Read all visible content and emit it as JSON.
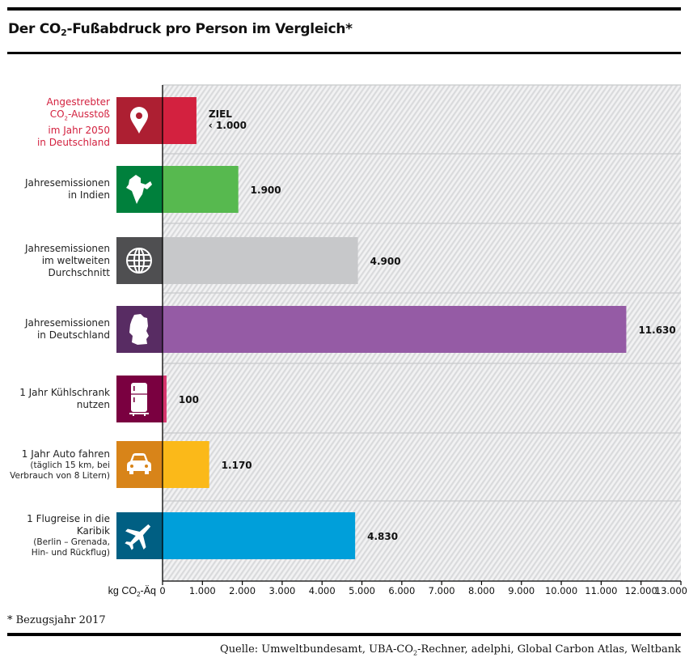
{
  "title": {
    "main_before": "Der CO",
    "sub": "2",
    "main_after": "-Fußabdruck pro Person im Vergleich*"
  },
  "footnote": "* Bezugsjahr 2017",
  "source": {
    "before": "Quelle: Umweltbundesamt, UBA-CO",
    "sub": "2",
    "after": "-Rechner, adelphi, Global Carbon Atlas, Weltbank"
  },
  "chart_data": {
    "type": "bar",
    "orientation": "horizontal",
    "title": "Der CO2-Fußabdruck pro Person im Vergleich*",
    "xlabel": "kg CO₂-Äq",
    "xlim": [
      0,
      13000
    ],
    "xticks": [
      0,
      1000,
      2000,
      3000,
      4000,
      5000,
      6000,
      7000,
      8000,
      9000,
      10000,
      11000,
      12000,
      13000
    ],
    "xtick_labels": [
      "0",
      "1.000",
      "2.000",
      "3.000",
      "4.000",
      "5.000",
      "6.000",
      "7.000",
      "8.000",
      "9.000",
      "10.000",
      "11.000",
      "12.000",
      "13.000"
    ],
    "grid": false,
    "categories": [
      "Angestrebter CO2-Ausstoß im Jahr 2050 in Deutschland",
      "Jahresemissionen in Indien",
      "Jahresemissionen im weltweiten Durchschnitt",
      "Jahresemissionen in Deutschland",
      "1 Jahr Kühlschrank nutzen",
      "1 Jahr Auto fahren (täglich 15 km, bei Verbrauch von 8 Litern)",
      "1 Flugreise in die Karibik (Berlin – Grenada, Hin- und Rückflug)"
    ],
    "values": [
      850,
      1900,
      4900,
      11630,
      100,
      1170,
      4830
    ],
    "rows": [
      {
        "label_lines": [
          "Angestrebter",
          "CO|2|-Ausstoß",
          "im Jahr 2050",
          "in Deutschland"
        ],
        "small_lines": [],
        "value": 850,
        "value_label": [
          "ZIEL",
          "‹ 1.000"
        ],
        "icon": "location-pin-icon",
        "icon_color": "#ad1f32",
        "bar_color": "#d3213f",
        "label_color": "#d3213f"
      },
      {
        "label_lines": [
          "Jahresemissionen",
          "in Indien"
        ],
        "small_lines": [],
        "value": 1900,
        "value_label": [
          "1.900"
        ],
        "icon": "india-map-icon",
        "icon_color": "#00803c",
        "bar_color": "#57b94f",
        "label_color": "#222222"
      },
      {
        "label_lines": [
          "Jahresemissionen",
          "im weltweiten",
          "Durchschnitt"
        ],
        "small_lines": [],
        "value": 4900,
        "value_label": [
          "4.900"
        ],
        "icon": "globe-icon",
        "icon_color": "#4f4f51",
        "bar_color": "#c7c8ca",
        "label_color": "#222222"
      },
      {
        "label_lines": [
          "Jahresemissionen",
          "in Deutschland"
        ],
        "small_lines": [],
        "value": 11630,
        "value_label": [
          "11.630"
        ],
        "icon": "germany-map-icon",
        "icon_color": "#582c63",
        "bar_color": "#955ba5",
        "label_color": "#222222"
      },
      {
        "label_lines": [
          "1 Jahr Kühlschrank",
          "nutzen"
        ],
        "small_lines": [],
        "value": 100,
        "value_label": [
          "100"
        ],
        "icon": "fridge-icon",
        "icon_color": "#7a0040",
        "bar_color": "#d6336c",
        "label_color": "#222222"
      },
      {
        "label_lines": [
          "1 Jahr Auto fahren"
        ],
        "small_lines": [
          "(täglich 15 km, bei",
          "Verbrauch von 8 Litern)"
        ],
        "value": 1170,
        "value_label": [
          "1.170"
        ],
        "icon": "car-icon",
        "icon_color": "#d88419",
        "bar_color": "#fbb919",
        "label_color": "#222222"
      },
      {
        "label_lines": [
          "1 Flugreise in die",
          "Karibik"
        ],
        "small_lines": [
          "(Berlin – Grenada,",
          "Hin- und Rückflug)"
        ],
        "value": 4830,
        "value_label": [
          "4.830"
        ],
        "icon": "airplane-icon",
        "icon_color": "#005f83",
        "bar_color": "#009fda",
        "label_color": "#222222"
      }
    ],
    "axis_label": {
      "before": "kg CO",
      "sub": "2",
      "after": "-Äq"
    }
  }
}
